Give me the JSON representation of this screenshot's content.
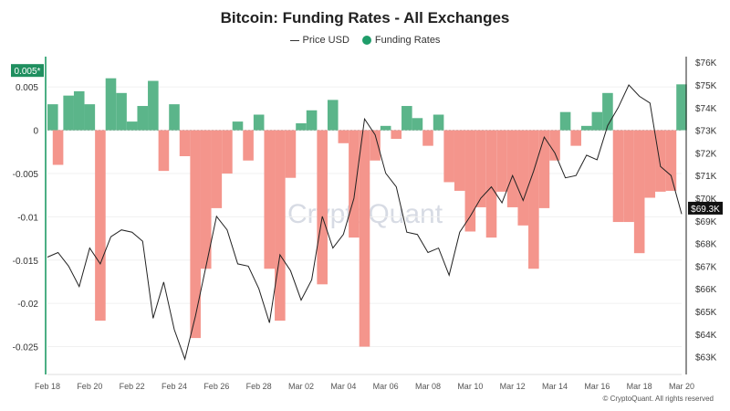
{
  "chart_data": {
    "type": "bar+line",
    "title": "Bitcoin: Funding Rates - All Exchanges",
    "legend": [
      "Price USD",
      "Funding Rates"
    ],
    "legend_placement": "top-center",
    "grid": true,
    "watermark": "CryptoQuant",
    "footer": "© CryptoQuant. All rights reserved",
    "x_tick_labels": [
      "Feb 18",
      "Feb 20",
      "Feb 22",
      "Feb 24",
      "Feb 26",
      "Feb 28",
      "Mar 02",
      "Mar 04",
      "Mar 06",
      "Mar 08",
      "Mar 10",
      "Mar 12",
      "Mar 14",
      "Mar 16",
      "Mar 18",
      "Mar 20"
    ],
    "y_left": {
      "ticks": [
        "0.005",
        "0",
        "-0.005",
        "-0.01",
        "-0.015",
        "-0.02",
        "-0.025"
      ],
      "range": [
        -0.028,
        0.0085
      ],
      "current_tag": "0.005*"
    },
    "y_right": {
      "ticks": [
        "$76K",
        "$75K",
        "$74K",
        "$73K",
        "$72K",
        "$71K",
        "$70K",
        "$69K",
        "$68K",
        "$67K",
        "$66K",
        "$65K",
        "$64K",
        "$63K"
      ],
      "range_k": [
        62.3,
        76.25
      ],
      "current_tag": "$69.3K"
    },
    "colors": {
      "positive": "#5bb58a",
      "negative": "#f4958c",
      "price": "#222222",
      "left_axis": "#4caf84",
      "tag_green": "#1f8f5f"
    },
    "time": [
      "Feb 18 00:00",
      "Feb 18 12:00",
      "Feb 19 00:00",
      "Feb 19 12:00",
      "Feb 20 00:00",
      "Feb 20 12:00",
      "Feb 21 00:00",
      "Feb 21 12:00",
      "Feb 22 00:00",
      "Feb 22 12:00",
      "Feb 23 00:00",
      "Feb 23 12:00",
      "Feb 24 00:00",
      "Feb 24 12:00",
      "Feb 25 00:00",
      "Feb 25 12:00",
      "Feb 26 00:00",
      "Feb 26 12:00",
      "Feb 27 00:00",
      "Feb 27 12:00",
      "Feb 28 00:00",
      "Feb 28 12:00",
      "Mar 01 00:00",
      "Mar 01 12:00",
      "Mar 02 00:00",
      "Mar 02 12:00",
      "Mar 03 00:00",
      "Mar 03 12:00",
      "Mar 04 00:00",
      "Mar 04 12:00",
      "Mar 05 00:00",
      "Mar 05 12:00",
      "Mar 06 00:00",
      "Mar 06 12:00",
      "Mar 07 00:00",
      "Mar 07 12:00",
      "Mar 08 00:00",
      "Mar 08 12:00",
      "Mar 09 00:00",
      "Mar 09 12:00",
      "Mar 10 00:00",
      "Mar 10 12:00",
      "Mar 11 00:00",
      "Mar 11 12:00",
      "Mar 12 00:00",
      "Mar 12 12:00",
      "Mar 13 00:00",
      "Mar 13 12:00",
      "Mar 14 00:00",
      "Mar 14 12:00",
      "Mar 15 00:00",
      "Mar 15 12:00",
      "Mar 16 00:00",
      "Mar 16 12:00",
      "Mar 17 00:00",
      "Mar 17 12:00",
      "Mar 18 00:00",
      "Mar 18 12:00",
      "Mar 19 00:00",
      "Mar 19 12:00",
      "Mar 20 00:00"
    ],
    "series": [
      {
        "name": "Funding Rates",
        "type": "bar",
        "values": [
          0.003,
          -0.004,
          0.004,
          0.0045,
          0.003,
          -0.022,
          0.006,
          0.0043,
          0.001,
          0.0028,
          0.0057,
          -0.0047,
          0.003,
          -0.003,
          -0.024,
          -0.016,
          -0.009,
          -0.005,
          0.001,
          -0.0035,
          0.0018,
          -0.016,
          -0.022,
          -0.0055,
          0.0008,
          0.0023,
          -0.0178,
          0.0035,
          -0.0015,
          -0.0124,
          -0.025,
          -0.0035,
          0.0005,
          -0.001,
          0.0028,
          0.0014,
          -0.0018,
          0.0018,
          -0.006,
          -0.007,
          -0.0117,
          -0.0089,
          -0.0124,
          -0.0071,
          -0.0089,
          -0.011,
          -0.016,
          -0.009,
          -0.0035,
          0.0021,
          -0.0018,
          0.0005,
          0.0021,
          0.0043,
          -0.0106,
          -0.0106,
          -0.0142,
          -0.0078,
          -0.0071,
          -0.007,
          0.0053
        ]
      },
      {
        "name": "Price USD",
        "type": "line",
        "unit": "USD thousands",
        "values": [
          67.4,
          67.6,
          67.0,
          66.1,
          67.8,
          67.1,
          68.3,
          68.6,
          68.5,
          68.1,
          64.7,
          66.3,
          64.2,
          62.9,
          64.8,
          67.0,
          69.2,
          68.6,
          67.1,
          67.0,
          66.0,
          64.5,
          67.5,
          66.8,
          65.5,
          66.4,
          69.2,
          67.8,
          68.4,
          70.0,
          73.5,
          72.8,
          71.1,
          70.5,
          68.5,
          68.4,
          67.6,
          67.8,
          66.6,
          68.5,
          69.2,
          70.0,
          70.5,
          69.8,
          71.0,
          69.9,
          71.2,
          72.7,
          72.0,
          70.9,
          71.0,
          71.9,
          71.7,
          73.2,
          74.0,
          75.0,
          74.5,
          74.2,
          71.4,
          71.0,
          69.3
        ]
      }
    ]
  }
}
